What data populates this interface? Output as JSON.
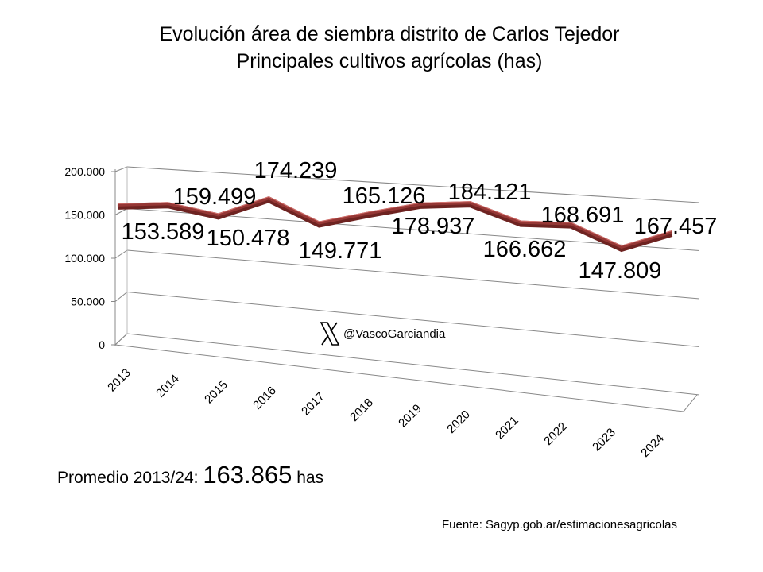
{
  "chart_data": {
    "type": "line",
    "title": "Evolución área de siembra distrito de Carlos Tejedor",
    "subtitle": "Principales cultivos agrícolas (has)",
    "categories": [
      "2013",
      "2014",
      "2015",
      "2016",
      "2017",
      "2018",
      "2019",
      "2020",
      "2021",
      "2022",
      "2023",
      "2024"
    ],
    "values": [
      153589,
      159499,
      150478,
      174239,
      149771,
      165126,
      178937,
      184121,
      166662,
      168691,
      147809,
      167457
    ],
    "data_labels": [
      "153.589",
      "159.499",
      "150.478",
      "174.239",
      "149.771",
      "165.126",
      "178.937",
      "184.121",
      "166.662",
      "168.691",
      "147.809",
      "167.457"
    ],
    "y_ticks": [
      "0",
      "50.000",
      "100.000",
      "150.000",
      "200.000"
    ],
    "ylim": [
      0,
      200000
    ],
    "grid": true,
    "legend": "none",
    "style": "3d-line",
    "series_color": "#953735"
  },
  "watermark": {
    "icon": "x-logo-icon",
    "handle": "@VascoGarciandia"
  },
  "footer": {
    "promedio_label": "Promedio 2013/24:",
    "promedio_value": "163.865",
    "promedio_unit": "has",
    "source": "Fuente: Sagyp.gob.ar/estimacionesagricolas"
  }
}
